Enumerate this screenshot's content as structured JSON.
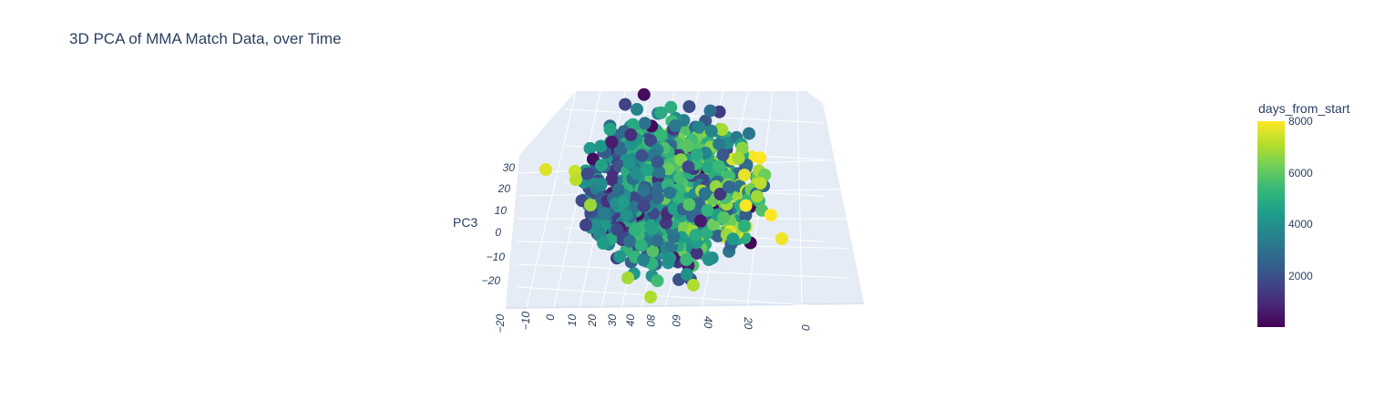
{
  "chart_data": {
    "type": "scatter",
    "title": "3D PCA of MMA Match Data, over Time",
    "projection": "3d",
    "axes": {
      "x": {
        "title": "",
        "ticks": [
          "−20",
          "−10",
          "0",
          "10",
          "20",
          "30",
          "40"
        ]
      },
      "y": {
        "title": "",
        "ticks": [
          "80",
          "60",
          "40",
          "20",
          "0"
        ]
      },
      "z": {
        "title": "PC3",
        "ticks": [
          "30",
          "20",
          "10",
          "0",
          "−10",
          "−20"
        ]
      }
    },
    "colorbar": {
      "title": "days_from_start",
      "colorscale": "Viridis",
      "range": [
        0,
        8000
      ],
      "ticks": [
        "8000",
        "6000",
        "4000",
        "2000"
      ],
      "tick_values": [
        8000,
        6000,
        4000,
        2000
      ],
      "colors": [
        "#440154",
        "#482878",
        "#3e4989",
        "#31688e",
        "#26828e",
        "#1f9e89",
        "#35b779",
        "#6ece58",
        "#b5de2b",
        "#fde725"
      ]
    },
    "background_color": "#e5ecf6",
    "grid": true,
    "legend": "none"
  }
}
